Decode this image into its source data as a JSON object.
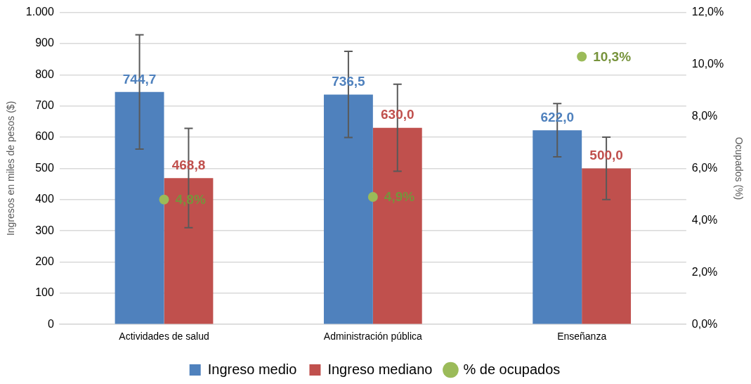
{
  "chart_data": {
    "type": "bar",
    "categories": [
      "Actividades de salud",
      "Administración pública",
      "Enseñanza"
    ],
    "ylabel": "Ingresos en miles de pesos ($)",
    "y2label": "Ocupados (%)",
    "series": [
      {
        "name": "Ingreso medio",
        "color": "#4f81bd",
        "values": [
          744.7,
          736.5,
          622.0
        ],
        "errors": [
          [
            562,
            928
          ],
          [
            599,
            875
          ],
          [
            537,
            708
          ]
        ],
        "value_labels": [
          "744,7",
          "736,5",
          "622,0"
        ]
      },
      {
        "name": "Ingreso mediano",
        "color": "#c0504d",
        "values": [
          468.8,
          630.0,
          500.0
        ],
        "errors": [
          [
            310,
            628
          ],
          [
            491,
            770
          ],
          [
            400,
            600
          ]
        ],
        "value_labels": [
          "468,8",
          "630,0",
          "500,0"
        ]
      },
      {
        "name": "% de ocupados",
        "type": "scatter",
        "axis": "y2",
        "color": "#9bbb59",
        "x": [
          "Actividades de salud",
          "Administración pública",
          "Enseñanza"
        ],
        "values": [
          4.8,
          4.9,
          10.3
        ],
        "value_labels": [
          "4,8%",
          "4,9%",
          "10,3%"
        ]
      }
    ],
    "ylim": [
      0,
      1000
    ],
    "yticks": [
      0,
      100,
      200,
      300,
      400,
      500,
      600,
      700,
      800,
      900,
      {
        "value": 1000,
        "label": "1.000"
      }
    ],
    "y2lim": [
      0,
      12
    ],
    "y2ticks": [
      {
        "value": 0,
        "label": "0,0%"
      },
      {
        "value": 2,
        "label": "2,0%"
      },
      {
        "value": 4,
        "label": "4,0%"
      },
      {
        "value": 6,
        "label": "6,0%"
      },
      {
        "value": 8,
        "label": "8,0%"
      },
      {
        "value": 10,
        "label": "10,0%"
      },
      {
        "value": 12,
        "label": "12,0%"
      }
    ],
    "grid": "y",
    "legend": "bottom",
    "marker": "circle"
  }
}
